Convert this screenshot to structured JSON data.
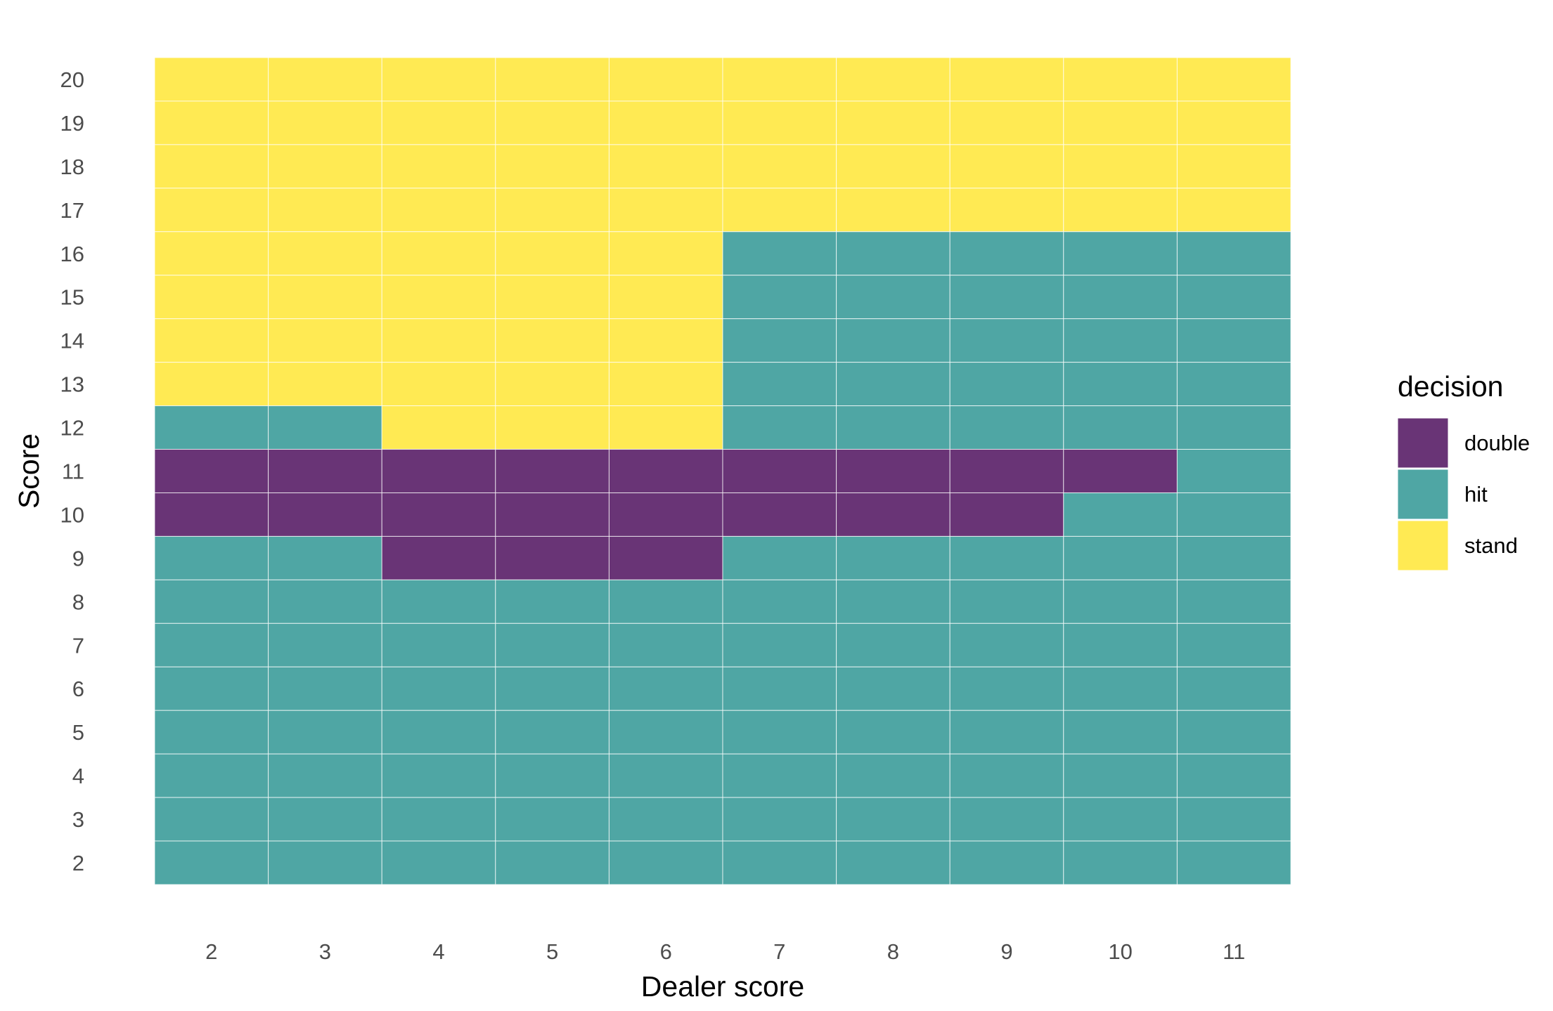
{
  "chart_data": {
    "type": "heatmap",
    "title": "",
    "xlabel": "Dealer score",
    "ylabel": "Score",
    "x": [
      2,
      3,
      4,
      5,
      6,
      7,
      8,
      9,
      10,
      11
    ],
    "y": [
      2,
      3,
      4,
      5,
      6,
      7,
      8,
      9,
      10,
      11,
      12,
      13,
      14,
      15,
      16,
      17,
      18,
      19,
      20
    ],
    "grid": false,
    "legend": {
      "title": "decision",
      "position": "right",
      "items": [
        {
          "label": "double",
          "color": "#693476"
        },
        {
          "label": "hit",
          "color": "#4fa6a4"
        },
        {
          "label": "stand",
          "color": "#ffea53"
        }
      ]
    },
    "rows": [
      {
        "score": 20,
        "decisions": [
          "stand",
          "stand",
          "stand",
          "stand",
          "stand",
          "stand",
          "stand",
          "stand",
          "stand",
          "stand"
        ]
      },
      {
        "score": 19,
        "decisions": [
          "stand",
          "stand",
          "stand",
          "stand",
          "stand",
          "stand",
          "stand",
          "stand",
          "stand",
          "stand"
        ]
      },
      {
        "score": 18,
        "decisions": [
          "stand",
          "stand",
          "stand",
          "stand",
          "stand",
          "stand",
          "stand",
          "stand",
          "stand",
          "stand"
        ]
      },
      {
        "score": 17,
        "decisions": [
          "stand",
          "stand",
          "stand",
          "stand",
          "stand",
          "stand",
          "stand",
          "stand",
          "stand",
          "stand"
        ]
      },
      {
        "score": 16,
        "decisions": [
          "stand",
          "stand",
          "stand",
          "stand",
          "stand",
          "hit",
          "hit",
          "hit",
          "hit",
          "hit"
        ]
      },
      {
        "score": 15,
        "decisions": [
          "stand",
          "stand",
          "stand",
          "stand",
          "stand",
          "hit",
          "hit",
          "hit",
          "hit",
          "hit"
        ]
      },
      {
        "score": 14,
        "decisions": [
          "stand",
          "stand",
          "stand",
          "stand",
          "stand",
          "hit",
          "hit",
          "hit",
          "hit",
          "hit"
        ]
      },
      {
        "score": 13,
        "decisions": [
          "stand",
          "stand",
          "stand",
          "stand",
          "stand",
          "hit",
          "hit",
          "hit",
          "hit",
          "hit"
        ]
      },
      {
        "score": 12,
        "decisions": [
          "hit",
          "hit",
          "stand",
          "stand",
          "stand",
          "hit",
          "hit",
          "hit",
          "hit",
          "hit"
        ]
      },
      {
        "score": 11,
        "decisions": [
          "double",
          "double",
          "double",
          "double",
          "double",
          "double",
          "double",
          "double",
          "double",
          "hit"
        ]
      },
      {
        "score": 10,
        "decisions": [
          "double",
          "double",
          "double",
          "double",
          "double",
          "double",
          "double",
          "double",
          "hit",
          "hit"
        ]
      },
      {
        "score": 9,
        "decisions": [
          "hit",
          "hit",
          "double",
          "double",
          "double",
          "hit",
          "hit",
          "hit",
          "hit",
          "hit"
        ]
      },
      {
        "score": 8,
        "decisions": [
          "hit",
          "hit",
          "hit",
          "hit",
          "hit",
          "hit",
          "hit",
          "hit",
          "hit",
          "hit"
        ]
      },
      {
        "score": 7,
        "decisions": [
          "hit",
          "hit",
          "hit",
          "hit",
          "hit",
          "hit",
          "hit",
          "hit",
          "hit",
          "hit"
        ]
      },
      {
        "score": 6,
        "decisions": [
          "hit",
          "hit",
          "hit",
          "hit",
          "hit",
          "hit",
          "hit",
          "hit",
          "hit",
          "hit"
        ]
      },
      {
        "score": 5,
        "decisions": [
          "hit",
          "hit",
          "hit",
          "hit",
          "hit",
          "hit",
          "hit",
          "hit",
          "hit",
          "hit"
        ]
      },
      {
        "score": 4,
        "decisions": [
          "hit",
          "hit",
          "hit",
          "hit",
          "hit",
          "hit",
          "hit",
          "hit",
          "hit",
          "hit"
        ]
      },
      {
        "score": 3,
        "decisions": [
          "hit",
          "hit",
          "hit",
          "hit",
          "hit",
          "hit",
          "hit",
          "hit",
          "hit",
          "hit"
        ]
      },
      {
        "score": 2,
        "decisions": [
          "hit",
          "hit",
          "hit",
          "hit",
          "hit",
          "hit",
          "hit",
          "hit",
          "hit",
          "hit"
        ]
      }
    ]
  }
}
